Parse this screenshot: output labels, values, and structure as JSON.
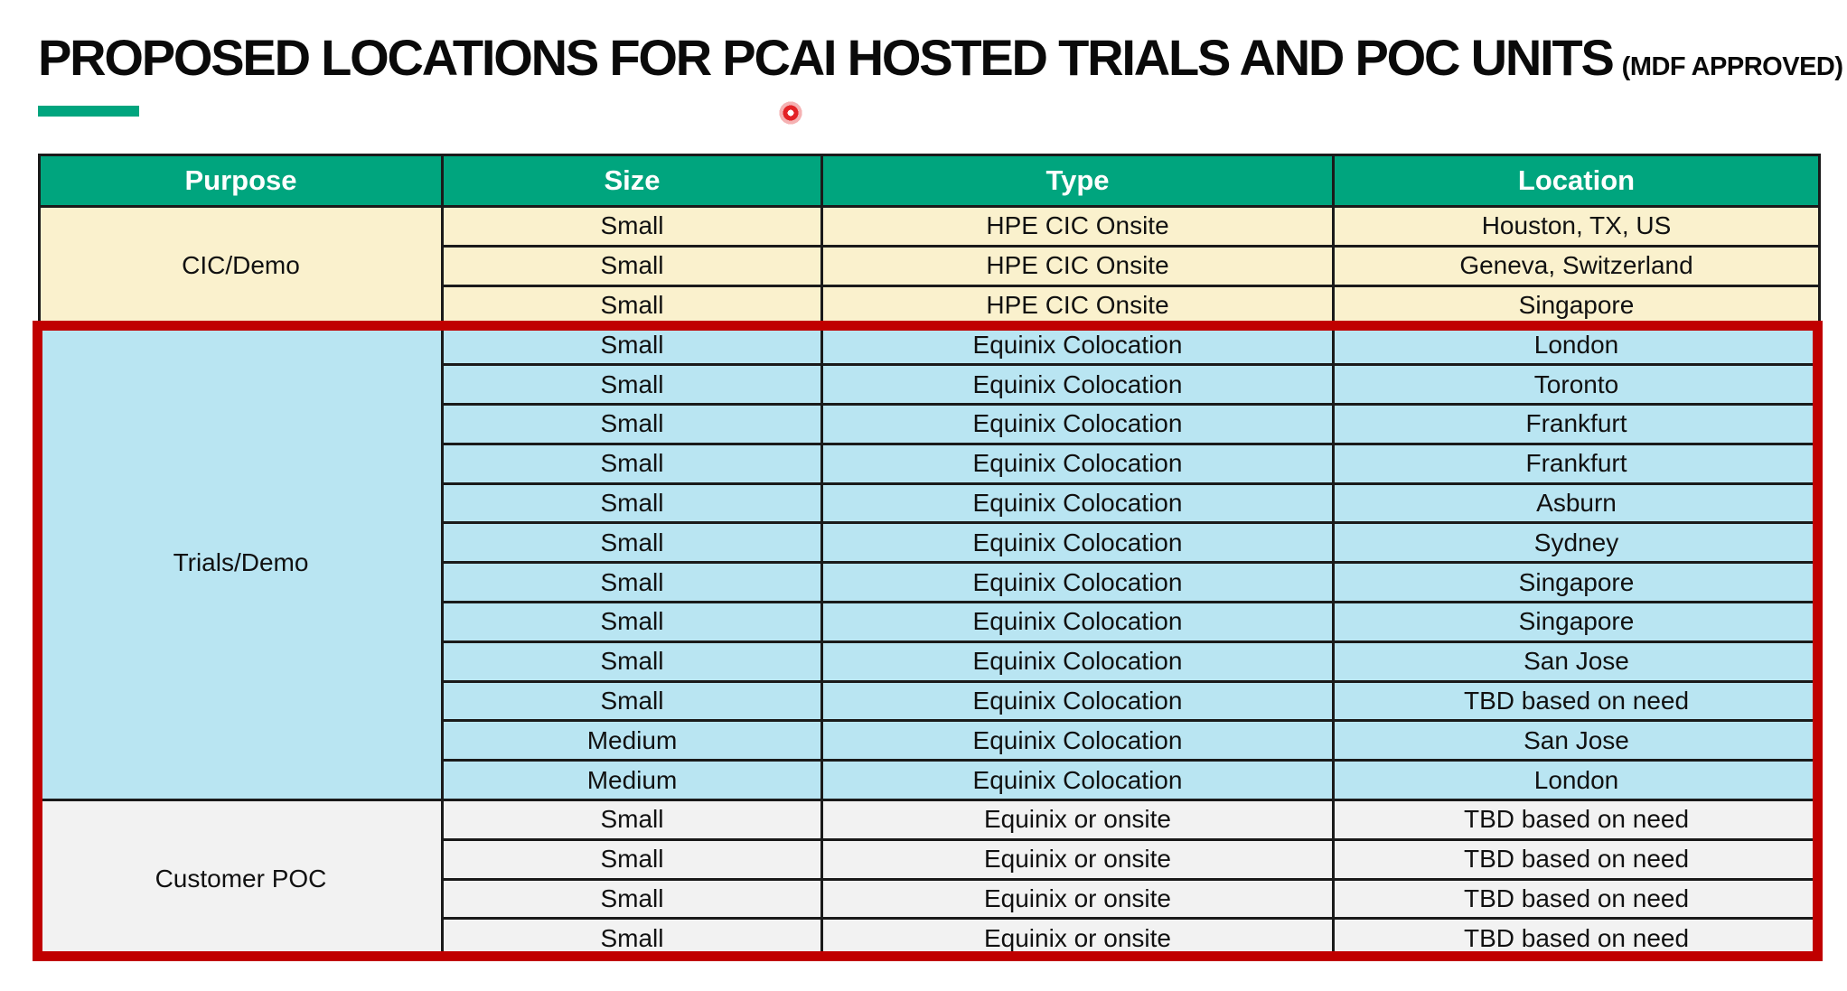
{
  "title": {
    "main": "PROPOSED LOCATIONS FOR PCAI HOSTED TRIALS AND POC UNITS",
    "suffix": "(MDF APPROVED)"
  },
  "accent_color": "#00A57E",
  "laser_pointer_color": "#E32226",
  "table": {
    "columns": [
      "Purpose",
      "Size",
      "Type",
      "Location"
    ],
    "header_bg": "#00A57E",
    "header_text_color": "#FFFFFF",
    "border_color": "#1A1A1A",
    "highlight_border_color": "#C00000",
    "sections": [
      {
        "purpose": "CIC/Demo",
        "bg": "#FAF1CD",
        "highlighted": false,
        "rows": [
          {
            "size": "Small",
            "type": "HPE CIC Onsite",
            "location": "Houston, TX, US"
          },
          {
            "size": "Small",
            "type": "HPE CIC Onsite",
            "location": "Geneva, Switzerland"
          },
          {
            "size": "Small",
            "type": "HPE CIC Onsite",
            "location": "Singapore"
          }
        ]
      },
      {
        "purpose": "Trials/Demo",
        "bg": "#B9E5F2",
        "highlighted": true,
        "rows": [
          {
            "size": "Small",
            "type": "Equinix Colocation",
            "location": "London"
          },
          {
            "size": "Small",
            "type": "Equinix Colocation",
            "location": "Toronto"
          },
          {
            "size": "Small",
            "type": "Equinix Colocation",
            "location": "Frankfurt"
          },
          {
            "size": "Small",
            "type": "Equinix Colocation",
            "location": "Frankfurt"
          },
          {
            "size": "Small",
            "type": "Equinix Colocation",
            "location": "Asburn"
          },
          {
            "size": "Small",
            "type": "Equinix Colocation",
            "location": "Sydney"
          },
          {
            "size": "Small",
            "type": "Equinix Colocation",
            "location": "Singapore"
          },
          {
            "size": "Small",
            "type": "Equinix Colocation",
            "location": "Singapore"
          },
          {
            "size": "Small",
            "type": "Equinix Colocation",
            "location": "San Jose"
          },
          {
            "size": "Small",
            "type": "Equinix Colocation",
            "location": "TBD based on need"
          },
          {
            "size": "Medium",
            "type": "Equinix Colocation",
            "location": "San Jose"
          },
          {
            "size": "Medium",
            "type": "Equinix Colocation",
            "location": "London"
          }
        ]
      },
      {
        "purpose": "Customer POC",
        "bg": "#F2F2F2",
        "highlighted": true,
        "rows": [
          {
            "size": "Small",
            "type": "Equinix or onsite",
            "location": "TBD based on need"
          },
          {
            "size": "Small",
            "type": "Equinix or onsite",
            "location": "TBD based on need"
          },
          {
            "size": "Small",
            "type": "Equinix or onsite",
            "location": "TBD based on need"
          },
          {
            "size": "Small",
            "type": "Equinix or onsite",
            "location": "TBD based on need"
          }
        ]
      }
    ]
  }
}
